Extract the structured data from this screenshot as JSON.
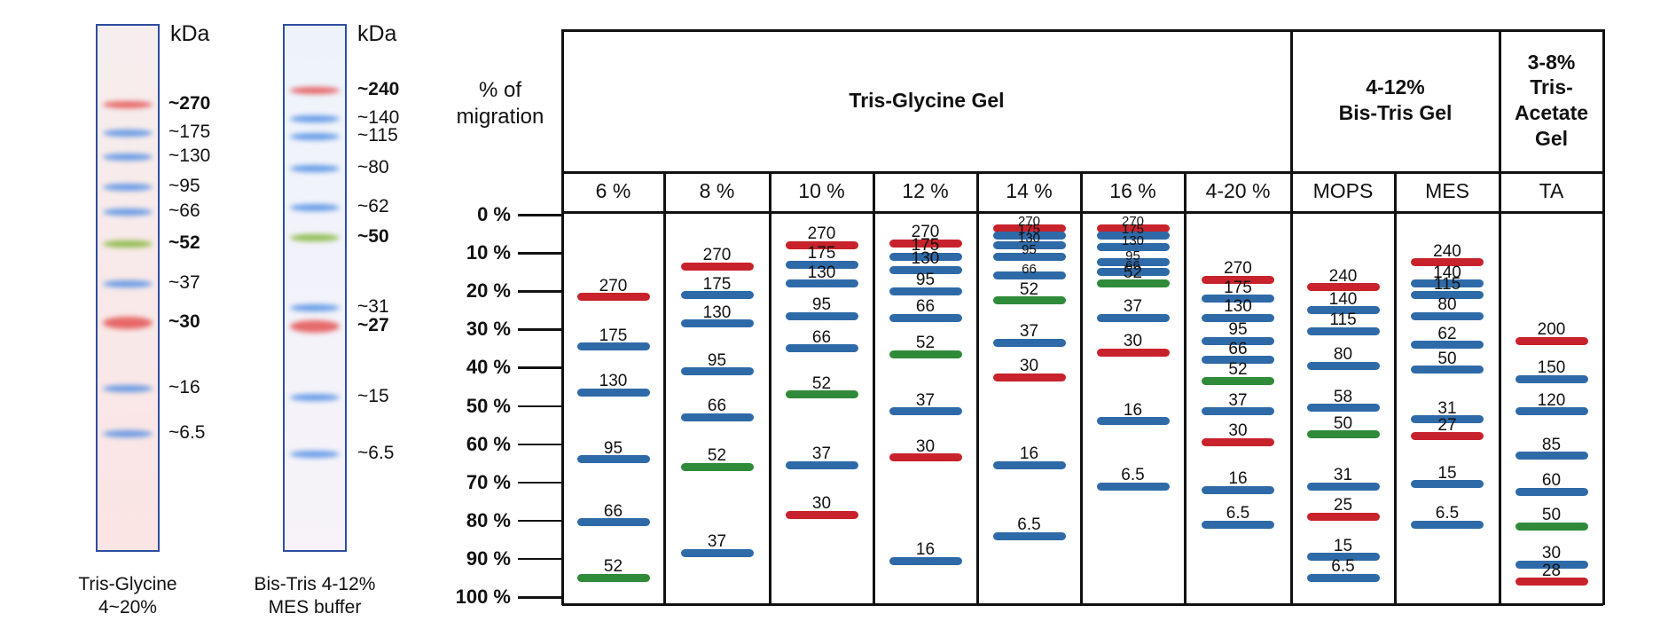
{
  "colors": {
    "blue": "#2f6aa8",
    "red": "#c8232c",
    "green": "#2f8a3a",
    "frame": "#2c4da0"
  },
  "left_gels": [
    {
      "kda_label": "kDa",
      "caption": [
        "Tris-Glycine",
        "4~20%"
      ],
      "markers": [
        {
          "label": "~270",
          "bold": true,
          "color": "red"
        },
        {
          "label": "~175",
          "bold": false,
          "color": "blue"
        },
        {
          "label": "~130",
          "bold": false,
          "color": "blue"
        },
        {
          "label": "~95",
          "bold": false,
          "color": "blue"
        },
        {
          "label": "~66",
          "bold": false,
          "color": "blue"
        },
        {
          "label": "~52",
          "bold": true,
          "color": "green"
        },
        {
          "label": "~37",
          "bold": false,
          "color": "blue"
        },
        {
          "label": "~30",
          "bold": true,
          "color": "red"
        },
        {
          "label": "~16",
          "bold": false,
          "color": "blue"
        },
        {
          "label": "~6.5",
          "bold": false,
          "color": "blue"
        }
      ]
    },
    {
      "kda_label": "kDa",
      "caption": [
        "Bis-Tris 4-12%",
        "MES buffer"
      ],
      "markers": [
        {
          "label": "~240",
          "bold": true,
          "color": "red"
        },
        {
          "label": "~140",
          "bold": false,
          "color": "blue"
        },
        {
          "label": "~115",
          "bold": false,
          "color": "blue"
        },
        {
          "label": "~80",
          "bold": false,
          "color": "blue"
        },
        {
          "label": "~62",
          "bold": false,
          "color": "blue"
        },
        {
          "label": "~50",
          "bold": true,
          "color": "green"
        },
        {
          "label": "~31",
          "bold": false,
          "color": "blue"
        },
        {
          "label": "~27",
          "bold": true,
          "color": "red"
        },
        {
          "label": "~15",
          "bold": false,
          "color": "blue"
        },
        {
          "label": "~6.5",
          "bold": false,
          "color": "blue"
        }
      ]
    }
  ],
  "chart_data": {
    "type": "table",
    "y_title": [
      "% of",
      "migration"
    ],
    "y_ticks": [
      "0 %",
      "10 %",
      "20 %",
      "30 %",
      "40 %",
      "50 %",
      "60 %",
      "70 %",
      "80 %",
      "90 %",
      "100 %"
    ],
    "groups": [
      {
        "title": [
          "Tris-Glycine Gel"
        ],
        "span": 7
      },
      {
        "title": [
          "4-12%",
          "Bis-Tris Gel"
        ],
        "span": 2
      },
      {
        "title": [
          "3-8%",
          "Tris-",
          "Acetate",
          "Gel"
        ],
        "span": 1
      }
    ],
    "columns": [
      {
        "label": "6 %",
        "bands": [
          {
            "kda": "270",
            "migration": 21.5,
            "color": "red"
          },
          {
            "kda": "175",
            "migration": 34.5,
            "color": "blue"
          },
          {
            "kda": "130",
            "migration": 46.5,
            "color": "blue"
          },
          {
            "kda": "95",
            "migration": 64,
            "color": "blue"
          },
          {
            "kda": "66",
            "migration": 80.5,
            "color": "blue"
          },
          {
            "kda": "52",
            "migration": 95,
            "color": "green"
          }
        ]
      },
      {
        "label": "8 %",
        "bands": [
          {
            "kda": "270",
            "migration": 13.5,
            "color": "red"
          },
          {
            "kda": "175",
            "migration": 21,
            "color": "blue"
          },
          {
            "kda": "130",
            "migration": 28.5,
            "color": "blue"
          },
          {
            "kda": "95",
            "migration": 41,
            "color": "blue"
          },
          {
            "kda": "66",
            "migration": 53,
            "color": "blue"
          },
          {
            "kda": "52",
            "migration": 66,
            "color": "green"
          },
          {
            "kda": "37",
            "migration": 88.5,
            "color": "blue"
          }
        ]
      },
      {
        "label": "10 %",
        "bands": [
          {
            "kda": "270",
            "migration": 8,
            "color": "red"
          },
          {
            "kda": "175",
            "migration": 13,
            "color": "blue"
          },
          {
            "kda": "130",
            "migration": 18,
            "color": "blue"
          },
          {
            "kda": "95",
            "migration": 26.5,
            "color": "blue"
          },
          {
            "kda": "66",
            "migration": 35,
            "color": "blue"
          },
          {
            "kda": "52",
            "migration": 47,
            "color": "green"
          },
          {
            "kda": "37",
            "migration": 65.5,
            "color": "blue"
          },
          {
            "kda": "30",
            "migration": 78.5,
            "color": "red"
          }
        ]
      },
      {
        "label": "12 %",
        "bands": [
          {
            "kda": "270",
            "migration": 7.5,
            "color": "red"
          },
          {
            "kda": "175",
            "migration": 11,
            "color": "blue"
          },
          {
            "kda": "130",
            "migration": 14.5,
            "color": "blue"
          },
          {
            "kda": "95",
            "migration": 20,
            "color": "blue"
          },
          {
            "kda": "66",
            "migration": 27,
            "color": "blue"
          },
          {
            "kda": "52",
            "migration": 36.5,
            "color": "green"
          },
          {
            "kda": "37",
            "migration": 51.5,
            "color": "blue"
          },
          {
            "kda": "30",
            "migration": 63.5,
            "color": "red"
          },
          {
            "kda": "16",
            "migration": 90.5,
            "color": "blue"
          }
        ]
      },
      {
        "label": "14 %",
        "bands": [
          {
            "kda": "270",
            "migration": 3.5,
            "color": "red"
          },
          {
            "kda": "175",
            "migration": 5.5,
            "color": "blue"
          },
          {
            "kda": "130",
            "migration": 8,
            "color": "blue"
          },
          {
            "kda": "95",
            "migration": 11,
            "color": "blue"
          },
          {
            "kda": "66",
            "migration": 16,
            "color": "blue"
          },
          {
            "kda": "52",
            "migration": 22.5,
            "color": "green"
          },
          {
            "kda": "37",
            "migration": 33.5,
            "color": "blue"
          },
          {
            "kda": "30",
            "migration": 42.5,
            "color": "red"
          },
          {
            "kda": "16",
            "migration": 65.5,
            "color": "blue"
          },
          {
            "kda": "6.5",
            "migration": 84,
            "color": "blue"
          }
        ]
      },
      {
        "label": "16 %",
        "bands": [
          {
            "kda": "270",
            "migration": 3.5,
            "color": "red"
          },
          {
            "kda": "175",
            "migration": 5.5,
            "color": "blue"
          },
          {
            "kda": "130",
            "migration": 8.5,
            "color": "blue"
          },
          {
            "kda": "95",
            "migration": 12.5,
            "color": "blue"
          },
          {
            "kda": "66",
            "migration": 15,
            "color": "blue"
          },
          {
            "kda": "52",
            "migration": 18,
            "color": "green"
          },
          {
            "kda": "37",
            "migration": 27,
            "color": "blue"
          },
          {
            "kda": "30",
            "migration": 36,
            "color": "red"
          },
          {
            "kda": "16",
            "migration": 54,
            "color": "blue"
          },
          {
            "kda": "6.5",
            "migration": 71,
            "color": "blue"
          }
        ]
      },
      {
        "label": "4-20 %",
        "bands": [
          {
            "kda": "270",
            "migration": 17,
            "color": "red"
          },
          {
            "kda": "175",
            "migration": 22,
            "color": "blue"
          },
          {
            "kda": "130",
            "migration": 27,
            "color": "blue"
          },
          {
            "kda": "95",
            "migration": 33,
            "color": "blue"
          },
          {
            "kda": "66",
            "migration": 38,
            "color": "blue"
          },
          {
            "kda": "52",
            "migration": 43.5,
            "color": "green"
          },
          {
            "kda": "37",
            "migration": 51.5,
            "color": "blue"
          },
          {
            "kda": "30",
            "migration": 59.5,
            "color": "red"
          },
          {
            "kda": "16",
            "migration": 72,
            "color": "blue"
          },
          {
            "kda": "6.5",
            "migration": 81,
            "color": "blue"
          }
        ]
      },
      {
        "label": "MOPS",
        "bands": [
          {
            "kda": "240",
            "migration": 19,
            "color": "red"
          },
          {
            "kda": "140",
            "migration": 25,
            "color": "blue"
          },
          {
            "kda": "115",
            "migration": 30.5,
            "color": "blue"
          },
          {
            "kda": "80",
            "migration": 39.5,
            "color": "blue"
          },
          {
            "kda": "58",
            "migration": 50.5,
            "color": "blue"
          },
          {
            "kda": "50",
            "migration": 57.5,
            "color": "green"
          },
          {
            "kda": "31",
            "migration": 71,
            "color": "blue"
          },
          {
            "kda": "25",
            "migration": 79,
            "color": "red"
          },
          {
            "kda": "15",
            "migration": 89.5,
            "color": "blue"
          },
          {
            "kda": "6.5",
            "migration": 95,
            "color": "blue"
          }
        ]
      },
      {
        "label": "MES",
        "bands": [
          {
            "kda": "240",
            "migration": 12.5,
            "color": "red"
          },
          {
            "kda": "140",
            "migration": 18,
            "color": "blue"
          },
          {
            "kda": "115",
            "migration": 21,
            "color": "blue"
          },
          {
            "kda": "80",
            "migration": 26.5,
            "color": "blue"
          },
          {
            "kda": "62",
            "migration": 34,
            "color": "blue"
          },
          {
            "kda": "50",
            "migration": 40.5,
            "color": "blue"
          },
          {
            "kda": "31",
            "migration": 53.5,
            "color": "blue"
          },
          {
            "kda": "27",
            "migration": 58,
            "color": "red"
          },
          {
            "kda": "15",
            "migration": 70.5,
            "color": "blue"
          },
          {
            "kda": "6.5",
            "migration": 81,
            "color": "blue"
          }
        ]
      },
      {
        "label": "TA",
        "bands": [
          {
            "kda": "200",
            "migration": 33,
            "color": "red"
          },
          {
            "kda": "150",
            "migration": 43,
            "color": "blue"
          },
          {
            "kda": "120",
            "migration": 51.5,
            "color": "blue"
          },
          {
            "kda": "85",
            "migration": 63,
            "color": "blue"
          },
          {
            "kda": "60",
            "migration": 72.5,
            "color": "blue"
          },
          {
            "kda": "50",
            "migration": 81.5,
            "color": "green"
          },
          {
            "kda": "30",
            "migration": 91.5,
            "color": "blue"
          },
          {
            "kda": "28",
            "migration": 96,
            "color": "red"
          }
        ]
      }
    ]
  }
}
